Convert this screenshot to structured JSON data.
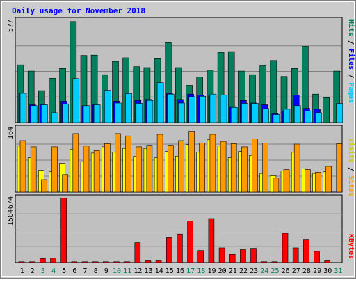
{
  "chart_data": {
    "type": "bar",
    "title": "Daily usage for November 2018",
    "x": [
      "1",
      "2",
      "3",
      "4",
      "5",
      "6",
      "7",
      "8",
      "9",
      "10",
      "11",
      "12",
      "13",
      "14",
      "15",
      "16",
      "17",
      "18",
      "19",
      "20",
      "21",
      "22",
      "23",
      "24",
      "25",
      "26",
      "27",
      "28",
      "29",
      "30",
      "31"
    ],
    "weekend_days": [
      "3",
      "4",
      "10",
      "11",
      "17",
      "18",
      "24",
      "25",
      "31"
    ],
    "grid": true,
    "panels": [
      {
        "name": "Pages / Files / Hits",
        "ylim": [
          0,
          577
        ],
        "max_label": "577",
        "series": [
          {
            "name": "Hits",
            "color": "#00805c",
            "values": [
              325,
              290,
              180,
              250,
              305,
              570,
              378,
              380,
              270,
              345,
              365,
              315,
              310,
              360,
              450,
              310,
              210,
              258,
              295,
              395,
              400,
              290,
              270,
              320,
              350,
              260,
              305,
              430,
              160,
              140,
              290
            ]
          },
          {
            "name": "Files",
            "color": "#0000ff",
            "values": [
              165,
              100,
              100,
              0,
              120,
              0,
              95,
              100,
              0,
              120,
              0,
              125,
              130,
              0,
              165,
              130,
              160,
              155,
              150,
              0,
              90,
              125,
              110,
              100,
              50,
              65,
              155,
              80,
              75,
              0,
              0
            ]
          },
          {
            "name": "Pages",
            "color": "#00ccff",
            "values": [
              165,
              95,
              100,
              55,
              105,
              248,
              95,
              100,
              182,
              110,
              163,
              108,
              125,
              225,
              160,
              110,
              145,
              148,
              160,
              155,
              85,
              108,
              108,
              78,
              45,
              75,
              95,
              65,
              55,
              0,
              108
            ]
          }
        ]
      },
      {
        "name": "Sites / Visits",
        "ylim": [
          0,
          164
        ],
        "max_label": "164",
        "series": [
          {
            "name": "Visits",
            "color": "#ffff00",
            "values": [
              118,
              88,
              56,
              52,
              74,
              110,
              78,
              100,
              116,
              102,
              112,
              92,
              112,
              88,
              104,
              92,
              122,
              102,
              134,
              118,
              88,
              104,
              94,
              48,
              42,
              54,
              102,
              60,
              48,
              52,
              0
            ]
          },
          {
            "name": "Sites",
            "color": "#ff9900",
            "values": [
              132,
              116,
              32,
              116,
              45,
              150,
              118,
              106,
              124,
              150,
              144,
              116,
              120,
              148,
              120,
              132,
              156,
              126,
              148,
              130,
              124,
              116,
              136,
              126,
              36,
              58,
              123,
              58,
              51,
              66,
              124
            ]
          }
        ]
      },
      {
        "name": "KBytes",
        "ylim": [
          0,
          1504674
        ],
        "max_label": "1504674",
        "series": [
          {
            "name": "KBytes",
            "color": "#ff0000",
            "values": [
              20000,
              20000,
              90000,
              100000,
              1500000,
              20000,
              20000,
              20000,
              20000,
              20000,
              20000,
              460000,
              40000,
              40000,
              580000,
              660000,
              960000,
              280000,
              1020000,
              340000,
              190000,
              300000,
              330000,
              20000,
              20000,
              680000,
              340000,
              540000,
              260000,
              40000,
              0
            ]
          }
        ]
      }
    ]
  }
}
